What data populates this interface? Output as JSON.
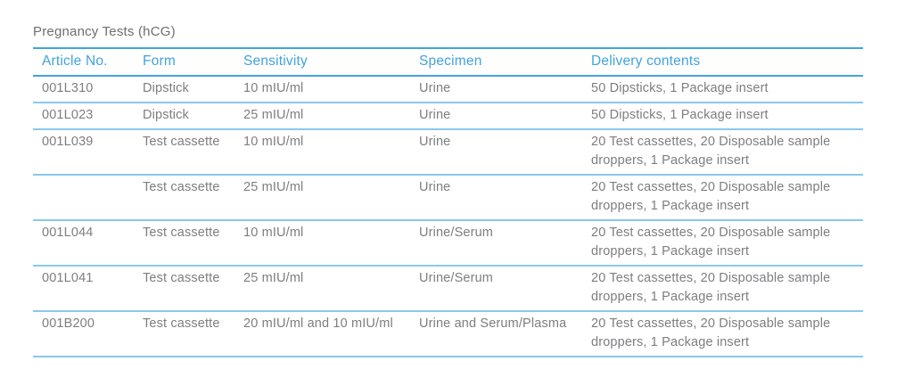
{
  "title": "Pregnancy Tests (hCG)",
  "colors": {
    "accent_blue": "#41a3dc",
    "row_line_blue": "#8ac8ec",
    "body_text_gray": "#7d7e81",
    "title_text_gray": "#6d6e71"
  },
  "table": {
    "columns": {
      "article_no": "Article No.",
      "form": "Form",
      "sensitivity": "Sensitivity",
      "specimen": "Specimen",
      "delivery_contents": "Delivery contents"
    },
    "rows": [
      {
        "article_no": "001L310",
        "form": "Dipstick",
        "sensitivity": "10 mIU/ml",
        "specimen": "Urine",
        "delivery_contents": "50 Dipsticks, 1 Package insert"
      },
      {
        "article_no": "001L023",
        "form": "Dipstick",
        "sensitivity": "25 mIU/ml",
        "specimen": "Urine",
        "delivery_contents": "50 Dipsticks, 1 Package insert"
      },
      {
        "article_no": "001L039",
        "form": "Test cassette",
        "sensitivity": "10 mIU/ml",
        "specimen": "Urine",
        "delivery_contents": "20 Test cassettes, 20 Disposable sample droppers, 1 Package insert"
      },
      {
        "article_no": "",
        "form": "Test cassette",
        "sensitivity": "25 mIU/ml",
        "specimen": "Urine",
        "delivery_contents": "20 Test cassettes, 20 Disposable sample droppers, 1 Package insert"
      },
      {
        "article_no": "001L044",
        "form": "Test cassette",
        "sensitivity": "10 mIU/ml",
        "specimen": "Urine/Serum",
        "delivery_contents": "20 Test cassettes, 20 Disposable sample droppers, 1 Package insert"
      },
      {
        "article_no": "001L041",
        "form": "Test cassette",
        "sensitivity": "25 mIU/ml",
        "specimen": "Urine/Serum",
        "delivery_contents": "20 Test cassettes, 20 Disposable sample droppers, 1 Package insert"
      },
      {
        "article_no": "001B200",
        "form": "Test cassette",
        "sensitivity": "20 mIU/ml and 10 mIU/ml",
        "specimen": "Urine and Serum/Plasma",
        "delivery_contents": "20 Test cassettes, 20 Disposable sample droppers, 1 Package insert"
      }
    ]
  }
}
